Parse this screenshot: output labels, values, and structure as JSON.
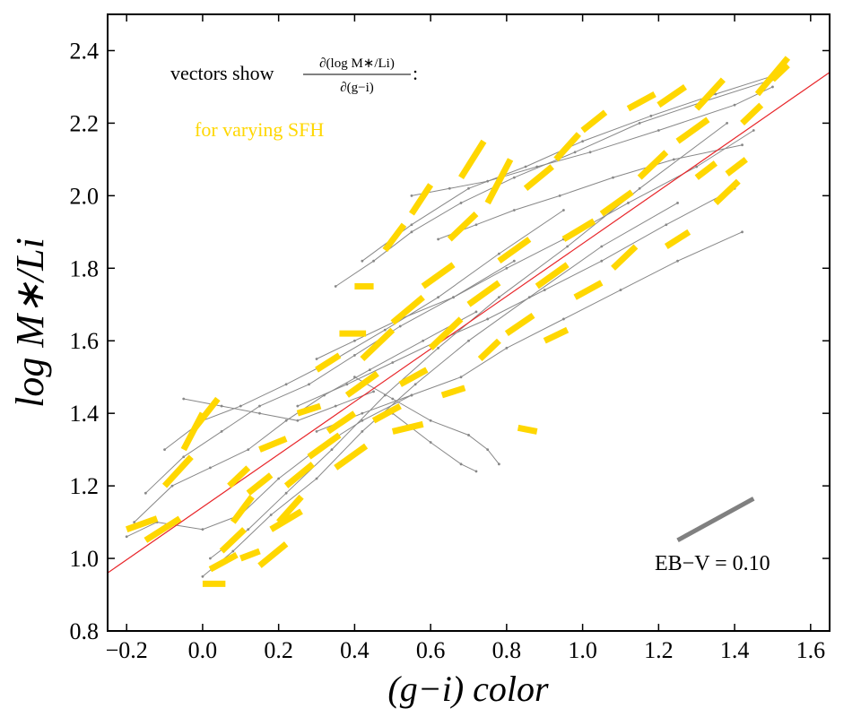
{
  "chart_data": {
    "type": "scatter",
    "xlabel": "(g−i) color",
    "ylabel": "log M∗/Li",
    "xlim": [
      -0.25,
      1.65
    ],
    "ylim": [
      0.8,
      2.5
    ],
    "xticks": [
      -0.2,
      0.0,
      0.2,
      0.4,
      0.6,
      0.8,
      1.0,
      1.2,
      1.4,
      1.6
    ],
    "xtick_labels": [
      "−0.2",
      "0.0",
      "0.2",
      "0.4",
      "0.6",
      "0.8",
      "1.0",
      "1.2",
      "1.4",
      "1.6"
    ],
    "yticks": [
      0.8,
      1.0,
      1.2,
      1.4,
      1.6,
      1.8,
      2.0,
      2.2,
      2.4
    ],
    "ytick_labels": [
      "0.8",
      "1.0",
      "1.2",
      "1.4",
      "1.6",
      "1.8",
      "2.0",
      "2.2",
      "2.4"
    ],
    "grid": false,
    "fit_line": {
      "x": [
        -0.25,
        1.65
      ],
      "y": [
        0.96,
        2.34
      ],
      "color": "#e8262a"
    },
    "annotation_title": "vectors show",
    "annotation_fraction_num": "∂(log M∗/Li)",
    "annotation_fraction_den": "∂(g−i)",
    "annotation_suffix": ":",
    "legend_sfh": "for varying SFH",
    "ebv_label": "EB−V = 0.10",
    "ebv_vector": {
      "x": [
        1.25,
        1.45
      ],
      "y": [
        1.05,
        1.165
      ]
    },
    "colors": {
      "grid_lines": "#888888",
      "vectors": "#ffd700",
      "fit": "#e8262a",
      "ebv": "#808080"
    },
    "series": [
      {
        "x": [
          -0.2,
          -0.12,
          0.0,
          0.1,
          0.2,
          0.3,
          0.42,
          0.55
        ],
        "y": [
          1.06,
          1.1,
          1.08,
          1.12,
          1.22,
          1.3,
          1.38,
          1.45
        ]
      },
      {
        "x": [
          -0.18,
          -0.08,
          0.02,
          0.12,
          0.22,
          0.32,
          0.44,
          0.58,
          0.72
        ],
        "y": [
          1.1,
          1.2,
          1.25,
          1.3,
          1.38,
          1.45,
          1.52,
          1.6,
          1.68
        ]
      },
      {
        "x": [
          -0.15,
          -0.05,
          0.05,
          0.15,
          0.28,
          0.4,
          0.52,
          0.66,
          0.82
        ],
        "y": [
          1.18,
          1.28,
          1.35,
          1.42,
          1.48,
          1.56,
          1.64,
          1.72,
          1.82
        ]
      },
      {
        "x": [
          -0.1,
          0.0,
          0.1,
          0.22,
          0.35,
          0.48,
          0.62,
          0.78,
          0.95
        ],
        "y": [
          1.3,
          1.38,
          1.42,
          1.48,
          1.55,
          1.63,
          1.72,
          1.84,
          1.96
        ]
      },
      {
        "x": [
          0.0,
          0.08,
          0.18,
          0.3,
          0.42,
          0.56,
          0.7,
          0.86,
          1.05,
          1.25
        ],
        "y": [
          0.95,
          1.02,
          1.12,
          1.22,
          1.35,
          1.48,
          1.6,
          1.72,
          1.86,
          1.98
        ]
      },
      {
        "x": [
          0.02,
          0.12,
          0.22,
          0.34,
          0.48,
          0.62,
          0.78,
          0.96,
          1.15,
          1.38
        ],
        "y": [
          1.0,
          1.08,
          1.18,
          1.3,
          1.45,
          1.58,
          1.72,
          1.86,
          2.02,
          2.2
        ]
      },
      {
        "x": [
          0.35,
          0.45,
          0.55,
          0.68,
          0.82,
          0.98,
          1.15,
          1.32,
          1.5
        ],
        "y": [
          1.75,
          1.82,
          1.9,
          1.98,
          2.05,
          2.12,
          2.2,
          2.26,
          2.32
        ]
      },
      {
        "x": [
          0.42,
          0.55,
          0.7,
          0.85,
          1.0,
          1.18,
          1.35,
          1.5
        ],
        "y": [
          1.82,
          1.92,
          2.02,
          2.08,
          2.15,
          2.22,
          2.28,
          2.33
        ]
      },
      {
        "x": [
          0.3,
          0.4,
          0.52,
          0.66,
          0.8,
          0.95,
          1.12,
          1.3,
          1.45
        ],
        "y": [
          1.55,
          1.6,
          1.66,
          1.72,
          1.8,
          1.88,
          1.98,
          2.08,
          2.18
        ]
      },
      {
        "x": [
          0.25,
          0.38,
          0.5,
          0.62,
          0.75,
          0.9,
          1.05,
          1.22,
          1.4
        ],
        "y": [
          1.42,
          1.48,
          1.54,
          1.6,
          1.66,
          1.74,
          1.82,
          1.92,
          2.02
        ]
      },
      {
        "x": [
          0.4,
          0.5,
          0.6,
          0.7,
          0.75,
          0.78
        ],
        "y": [
          1.5,
          1.44,
          1.38,
          1.34,
          1.3,
          1.26
        ]
      },
      {
        "x": [
          0.3,
          0.42,
          0.55,
          0.68,
          0.8,
          0.95,
          1.1,
          1.25,
          1.42
        ],
        "y": [
          1.35,
          1.4,
          1.45,
          1.5,
          1.58,
          1.66,
          1.74,
          1.82,
          1.9
        ]
      },
      {
        "x": [
          0.5,
          0.6,
          0.68,
          0.72
        ],
        "y": [
          1.4,
          1.32,
          1.26,
          1.24
        ]
      },
      {
        "x": [
          -0.05,
          0.05,
          0.15,
          0.25,
          0.35,
          0.45
        ],
        "y": [
          1.44,
          1.42,
          1.4,
          1.38,
          1.42,
          1.46
        ]
      },
      {
        "x": [
          0.55,
          0.65,
          0.75,
          0.88,
          1.02,
          1.2,
          1.4,
          1.5
        ],
        "y": [
          2.0,
          2.02,
          2.04,
          2.08,
          2.12,
          2.18,
          2.25,
          2.3
        ]
      },
      {
        "x": [
          0.62,
          0.72,
          0.82,
          0.94,
          1.08,
          1.24,
          1.42
        ],
        "y": [
          1.88,
          1.92,
          1.96,
          2.0,
          2.05,
          2.1,
          2.14
        ]
      }
    ],
    "vectors": [
      {
        "x": -0.2,
        "y": 1.08,
        "dx": 0.08,
        "dy": 0.03
      },
      {
        "x": -0.15,
        "y": 1.05,
        "dx": 0.09,
        "dy": 0.06
      },
      {
        "x": -0.1,
        "y": 1.2,
        "dx": 0.07,
        "dy": 0.08
      },
      {
        "x": -0.05,
        "y": 1.3,
        "dx": 0.05,
        "dy": 0.1
      },
      {
        "x": -0.02,
        "y": 1.36,
        "dx": 0.06,
        "dy": 0.08
      },
      {
        "x": 0.0,
        "y": 0.93,
        "dx": 0.06,
        "dy": 0.0
      },
      {
        "x": 0.02,
        "y": 0.97,
        "dx": 0.07,
        "dy": 0.04
      },
      {
        "x": 0.05,
        "y": 1.02,
        "dx": 0.06,
        "dy": 0.06
      },
      {
        "x": 0.08,
        "y": 1.1,
        "dx": 0.05,
        "dy": 0.07
      },
      {
        "x": 0.1,
        "y": 1.0,
        "dx": 0.05,
        "dy": 0.02
      },
      {
        "x": 0.12,
        "y": 1.18,
        "dx": 0.06,
        "dy": 0.05
      },
      {
        "x": 0.15,
        "y": 1.3,
        "dx": 0.07,
        "dy": 0.03
      },
      {
        "x": 0.18,
        "y": 1.08,
        "dx": 0.08,
        "dy": 0.05
      },
      {
        "x": 0.22,
        "y": 1.2,
        "dx": 0.07,
        "dy": 0.06
      },
      {
        "x": 0.25,
        "y": 1.4,
        "dx": 0.06,
        "dy": 0.02
      },
      {
        "x": 0.28,
        "y": 1.28,
        "dx": 0.08,
        "dy": 0.06
      },
      {
        "x": 0.3,
        "y": 1.52,
        "dx": 0.06,
        "dy": 0.04
      },
      {
        "x": 0.33,
        "y": 1.35,
        "dx": 0.07,
        "dy": 0.05
      },
      {
        "x": 0.36,
        "y": 1.62,
        "dx": 0.07,
        "dy": 0.0
      },
      {
        "x": 0.38,
        "y": 1.45,
        "dx": 0.08,
        "dy": 0.06
      },
      {
        "x": 0.4,
        "y": 1.75,
        "dx": 0.05,
        "dy": 0.0
      },
      {
        "x": 0.42,
        "y": 1.55,
        "dx": 0.08,
        "dy": 0.08
      },
      {
        "x": 0.45,
        "y": 1.38,
        "dx": 0.07,
        "dy": 0.04
      },
      {
        "x": 0.48,
        "y": 1.85,
        "dx": 0.05,
        "dy": 0.07
      },
      {
        "x": 0.5,
        "y": 1.65,
        "dx": 0.08,
        "dy": 0.07
      },
      {
        "x": 0.52,
        "y": 1.48,
        "dx": 0.07,
        "dy": 0.04
      },
      {
        "x": 0.55,
        "y": 1.95,
        "dx": 0.05,
        "dy": 0.08
      },
      {
        "x": 0.58,
        "y": 1.75,
        "dx": 0.08,
        "dy": 0.06
      },
      {
        "x": 0.6,
        "y": 1.58,
        "dx": 0.08,
        "dy": 0.08
      },
      {
        "x": 0.63,
        "y": 1.45,
        "dx": 0.06,
        "dy": 0.02
      },
      {
        "x": 0.65,
        "y": 1.88,
        "dx": 0.07,
        "dy": 0.07
      },
      {
        "x": 0.68,
        "y": 2.05,
        "dx": 0.06,
        "dy": 0.1
      },
      {
        "x": 0.7,
        "y": 1.7,
        "dx": 0.08,
        "dy": 0.06
      },
      {
        "x": 0.73,
        "y": 1.55,
        "dx": 0.05,
        "dy": 0.05
      },
      {
        "x": 0.75,
        "y": 1.98,
        "dx": 0.06,
        "dy": 0.12
      },
      {
        "x": 0.78,
        "y": 1.82,
        "dx": 0.08,
        "dy": 0.06
      },
      {
        "x": 0.8,
        "y": 1.62,
        "dx": 0.07,
        "dy": 0.05
      },
      {
        "x": 0.83,
        "y": 1.36,
        "dx": 0.05,
        "dy": -0.01
      },
      {
        "x": 0.85,
        "y": 2.02,
        "dx": 0.07,
        "dy": 0.06
      },
      {
        "x": 0.88,
        "y": 1.75,
        "dx": 0.08,
        "dy": 0.06
      },
      {
        "x": 0.9,
        "y": 1.6,
        "dx": 0.06,
        "dy": 0.03
      },
      {
        "x": 0.93,
        "y": 2.1,
        "dx": 0.06,
        "dy": 0.07
      },
      {
        "x": 0.95,
        "y": 1.88,
        "dx": 0.08,
        "dy": 0.05
      },
      {
        "x": 0.98,
        "y": 1.72,
        "dx": 0.07,
        "dy": 0.04
      },
      {
        "x": 1.0,
        "y": 2.18,
        "dx": 0.06,
        "dy": 0.05
      },
      {
        "x": 1.05,
        "y": 1.95,
        "dx": 0.08,
        "dy": 0.06
      },
      {
        "x": 1.08,
        "y": 1.8,
        "dx": 0.06,
        "dy": 0.06
      },
      {
        "x": 1.12,
        "y": 2.24,
        "dx": 0.07,
        "dy": 0.04
      },
      {
        "x": 1.15,
        "y": 2.05,
        "dx": 0.07,
        "dy": 0.07
      },
      {
        "x": 1.2,
        "y": 2.25,
        "dx": 0.07,
        "dy": 0.05
      },
      {
        "x": 1.22,
        "y": 1.86,
        "dx": 0.06,
        "dy": 0.04
      },
      {
        "x": 1.25,
        "y": 2.15,
        "dx": 0.08,
        "dy": 0.06
      },
      {
        "x": 1.3,
        "y": 2.24,
        "dx": 0.07,
        "dy": 0.08
      },
      {
        "x": 1.35,
        "y": 1.98,
        "dx": 0.06,
        "dy": 0.06
      },
      {
        "x": 1.38,
        "y": 2.06,
        "dx": 0.05,
        "dy": 0.04
      },
      {
        "x": 1.42,
        "y": 2.2,
        "dx": 0.05,
        "dy": 0.05
      },
      {
        "x": 1.46,
        "y": 2.28,
        "dx": 0.08,
        "dy": 0.1
      },
      {
        "x": 1.5,
        "y": 2.32,
        "dx": 0.04,
        "dy": 0.04
      },
      {
        "x": 1.3,
        "y": 2.05,
        "dx": 0.05,
        "dy": 0.04
      },
      {
        "x": 0.2,
        "y": 1.1,
        "dx": 0.06,
        "dy": 0.07
      },
      {
        "x": 0.15,
        "y": 0.98,
        "dx": 0.07,
        "dy": 0.06
      },
      {
        "x": 0.07,
        "y": 1.2,
        "dx": 0.05,
        "dy": 0.05
      },
      {
        "x": 0.35,
        "y": 1.25,
        "dx": 0.08,
        "dy": 0.06
      },
      {
        "x": 0.5,
        "y": 1.35,
        "dx": 0.08,
        "dy": 0.02
      }
    ]
  }
}
